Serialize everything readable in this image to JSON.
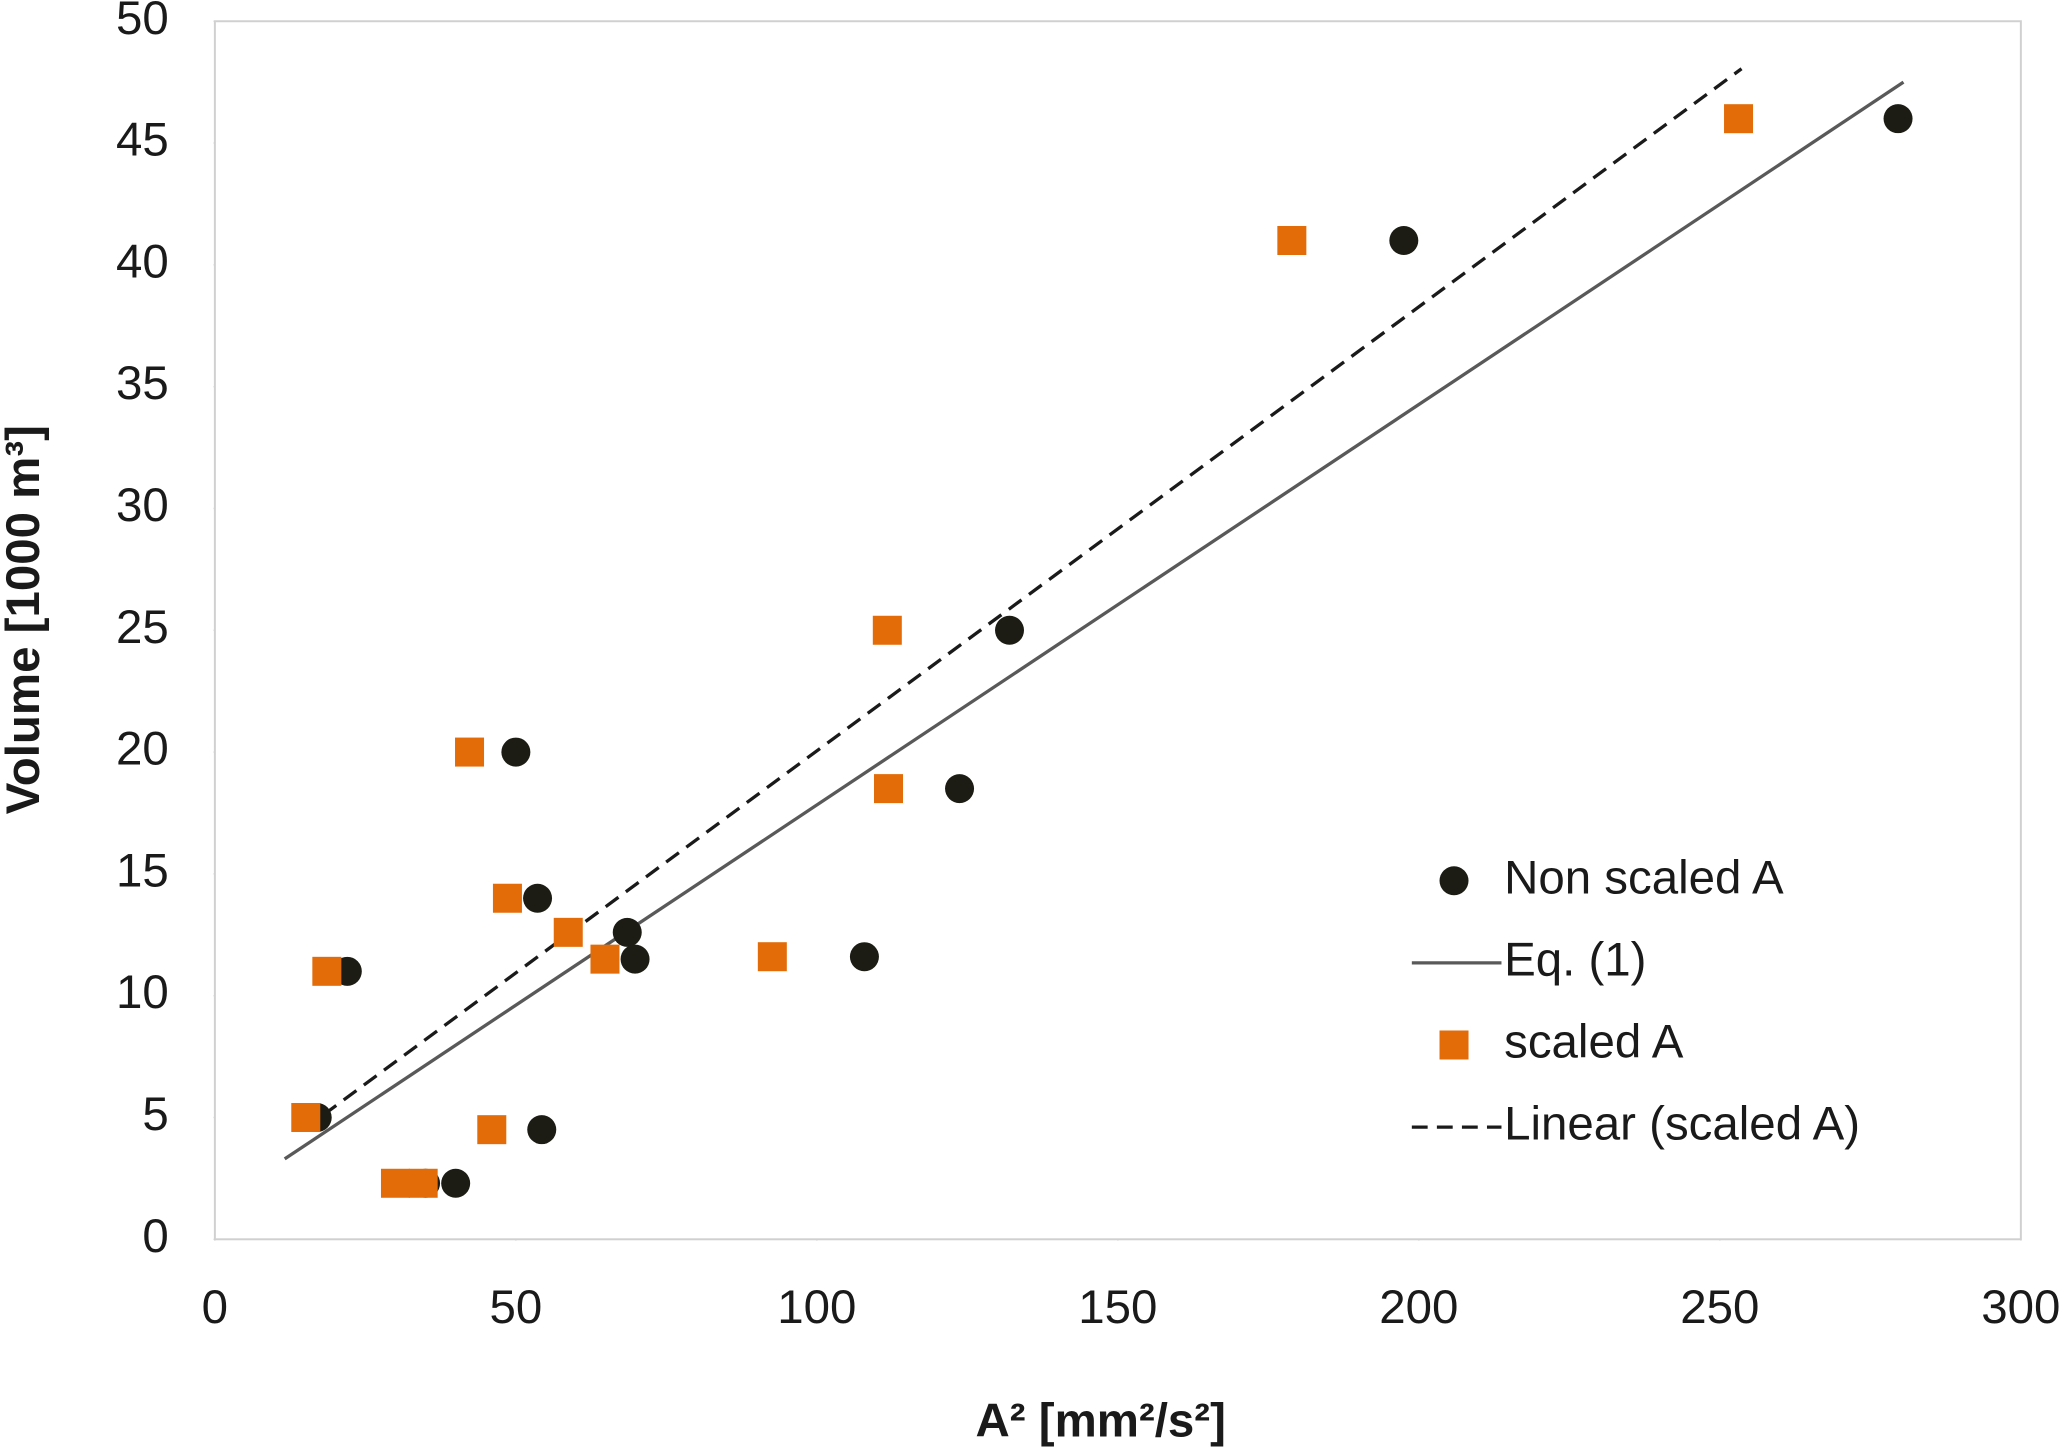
{
  "chart_data": {
    "type": "scatter",
    "y_label": "Volume [1000 m³]",
    "x_label": "A² [mm²/s²]",
    "xlim": [
      0,
      300
    ],
    "ylim": [
      0,
      50
    ],
    "xticks": [
      0,
      50,
      100,
      150,
      200,
      250,
      300
    ],
    "yticks": [
      0,
      5,
      10,
      15,
      20,
      25,
      30,
      35,
      40,
      45,
      50
    ],
    "grid": false,
    "legend": "center right",
    "series": [
      {
        "name": "Non scaled A",
        "color": "#1c1c14",
        "marker": "circle",
        "x": [
          17,
          22,
          35,
          40,
          50,
          53.6,
          54.3,
          68.5,
          69.8,
          107.9,
          123.7,
          132,
          197.5,
          279.6
        ],
        "values": [
          5,
          11,
          2.3,
          2.3,
          20,
          14,
          4.5,
          12.6,
          11.5,
          11.6,
          18.5,
          25,
          41,
          46
        ]
      },
      {
        "name": "Eq. (1)",
        "color": "#595959",
        "marker": "line",
        "dash": false,
        "x": [
          11.6,
          280.5
        ],
        "values": [
          3.3,
          47.5
        ]
      },
      {
        "name": "scaled A",
        "color": "#e36c09",
        "marker": "square",
        "x": [
          15.1,
          18.6,
          30,
          34.6,
          42.3,
          48.6,
          46,
          58.7,
          64.8,
          92.6,
          111.7,
          111.9,
          178.9,
          253.1
        ],
        "values": [
          5,
          11,
          2.3,
          2.3,
          20,
          14,
          4.5,
          12.6,
          11.5,
          11.6,
          25,
          18.5,
          41,
          46
        ]
      },
      {
        "name": "Linear (scaled A)",
        "color": "#1a1a1a",
        "marker": "line",
        "dash": true,
        "x": [
          14.7,
          253.6
        ],
        "values": [
          4.5,
          48.05
        ]
      }
    ]
  }
}
